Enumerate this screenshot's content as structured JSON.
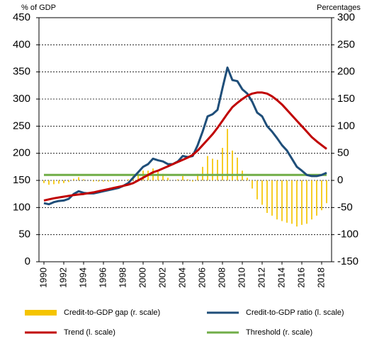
{
  "chart_data": {
    "type": "line",
    "y_label": "% of GDP",
    "y2_label": "Percentages",
    "x": [
      1990,
      1990.5,
      1991,
      1991.5,
      1992,
      1992.5,
      1993,
      1993.5,
      1994,
      1994.5,
      1995,
      1995.5,
      1996,
      1996.5,
      1997,
      1997.5,
      1998,
      1998.5,
      1999,
      1999.5,
      2000,
      2000.5,
      2001,
      2001.5,
      2002,
      2002.5,
      2003,
      2003.5,
      2004,
      2004.5,
      2005,
      2005.5,
      2006,
      2006.5,
      2007,
      2007.5,
      2008,
      2008.5,
      2009,
      2009.5,
      2010,
      2010.5,
      2011,
      2011.5,
      2012,
      2012.5,
      2013,
      2013.5,
      2014,
      2014.5,
      2015,
      2015.5,
      2016,
      2016.5,
      2017,
      2017.5,
      2018,
      2018.5
    ],
    "xlim": [
      1989.5,
      2019
    ],
    "xticks": [
      1990,
      1992,
      1994,
      1996,
      1998,
      2000,
      2002,
      2004,
      2006,
      2008,
      2010,
      2012,
      2014,
      2016,
      2018
    ],
    "ylim": [
      0,
      450
    ],
    "yticks": [
      0,
      50,
      100,
      150,
      200,
      250,
      300,
      350,
      400,
      450
    ],
    "y2lim": [
      -150,
      300
    ],
    "y2ticks": [
      -150,
      -100,
      -50,
      0,
      50,
      100,
      150,
      200,
      250,
      300
    ],
    "grid": true,
    "series": [
      {
        "name": "Credit-to-GDP gap (r. scale)",
        "type": "bar",
        "axis": "y2",
        "color": "#f5c400",
        "values": [
          -5,
          -8,
          -7,
          -6,
          -5,
          -3,
          3,
          6,
          2,
          0,
          -2,
          -2,
          -2,
          -2,
          -2,
          -2,
          0,
          2,
          8,
          12,
          18,
          18,
          22,
          16,
          12,
          5,
          0,
          2,
          8,
          2,
          -2,
          12,
          25,
          45,
          40,
          38,
          60,
          95,
          55,
          42,
          18,
          5,
          -15,
          -35,
          -45,
          -60,
          -65,
          -72,
          -75,
          -78,
          -80,
          -85,
          -82,
          -80,
          -72,
          -65,
          -55,
          -42
        ]
      },
      {
        "name": "Credit-to-GDP ratio (l. scale)",
        "type": "line",
        "axis": "y",
        "color": "#1f4e79",
        "values": [
          108,
          106,
          110,
          112,
          113,
          116,
          125,
          130,
          127,
          126,
          126,
          128,
          130,
          132,
          134,
          136,
          140,
          145,
          155,
          165,
          175,
          180,
          190,
          187,
          185,
          180,
          180,
          185,
          195,
          193,
          195,
          215,
          240,
          268,
          272,
          280,
          320,
          358,
          335,
          333,
          318,
          310,
          295,
          275,
          268,
          250,
          240,
          228,
          215,
          205,
          190,
          175,
          168,
          160,
          158,
          158,
          160,
          164
        ]
      },
      {
        "name": "Trend (l. scale)",
        "type": "line",
        "axis": "y",
        "color": "#c00000",
        "values": [
          113,
          115,
          117,
          118.5,
          120,
          121.5,
          123,
          124,
          125,
          126.5,
          128,
          130,
          132,
          134,
          136,
          138,
          140,
          142,
          145,
          150,
          155,
          160,
          165,
          168,
          172,
          176,
          180,
          184,
          188,
          192,
          197,
          205,
          215,
          225,
          235,
          247,
          260,
          273,
          285,
          293,
          300,
          306,
          310,
          312,
          312,
          310,
          305,
          298,
          290,
          280,
          270,
          260,
          250,
          240,
          230,
          222,
          215,
          208
        ]
      },
      {
        "name": "Threshold (r. scale)",
        "type": "line",
        "axis": "y2",
        "color": "#70ad47",
        "values": [
          10,
          10,
          10,
          10,
          10,
          10,
          10,
          10,
          10,
          10,
          10,
          10,
          10,
          10,
          10,
          10,
          10,
          10,
          10,
          10,
          10,
          10,
          10,
          10,
          10,
          10,
          10,
          10,
          10,
          10,
          10,
          10,
          10,
          10,
          10,
          10,
          10,
          10,
          10,
          10,
          10,
          10,
          10,
          10,
          10,
          10,
          10,
          10,
          10,
          10,
          10,
          10,
          10,
          10,
          10,
          10,
          10,
          10
        ]
      }
    ]
  }
}
